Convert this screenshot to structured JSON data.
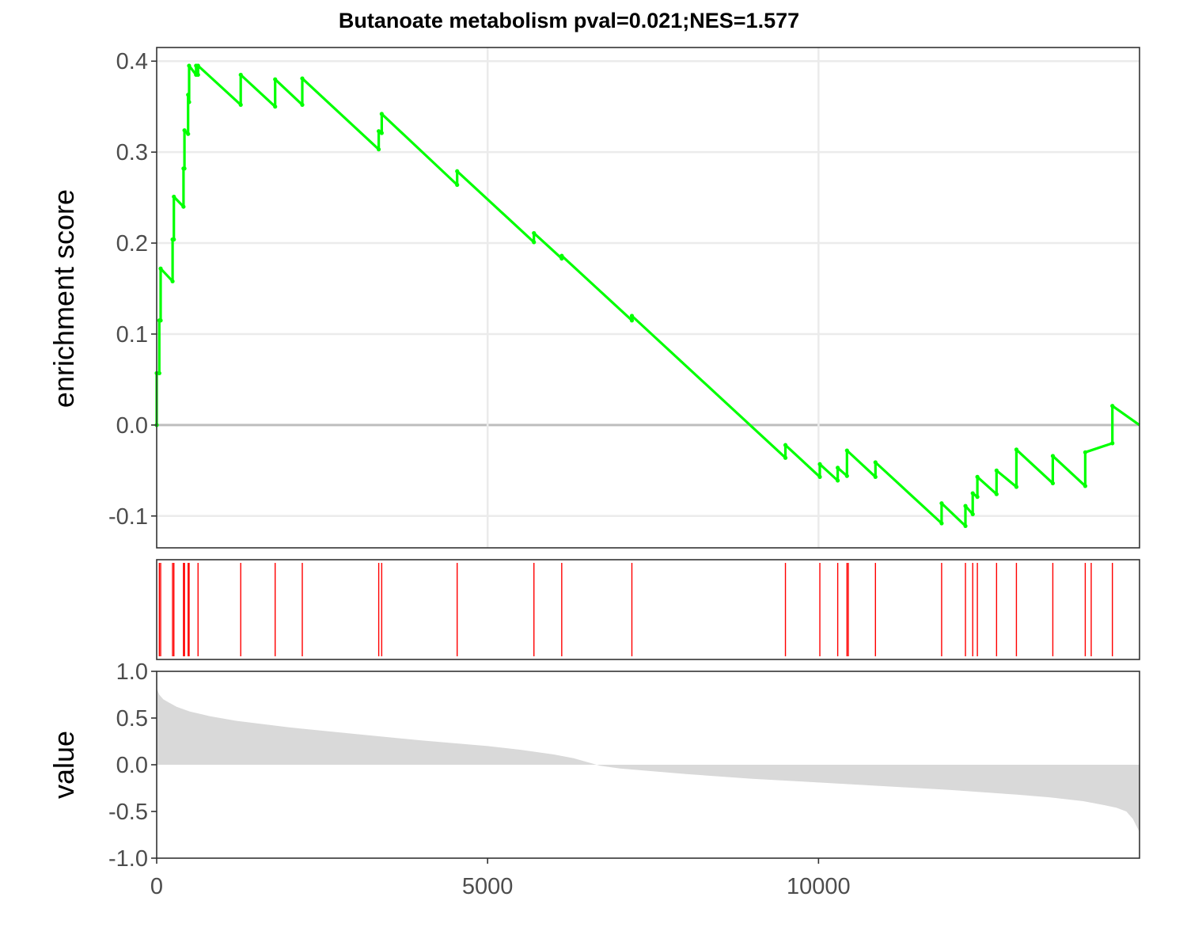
{
  "colors": {
    "es_line": "#00ff00",
    "hit": "#ff0000",
    "ranked": "#d9d9d9",
    "grid": "#ebebeb",
    "zero_line": "#bebebe",
    "panel_border": "#333333",
    "text": "#4d4d4d"
  },
  "chart_data": [
    {
      "type": "line",
      "panel": "running enrichment score",
      "title": "Butanoate metabolism pval=0.021;NES=1.577",
      "ylabel": "enrichment score",
      "xlabel": "",
      "xlim": [
        0,
        14850
      ],
      "ylim": [
        -0.135,
        0.415
      ],
      "x_ticks": [
        0,
        5000,
        10000
      ],
      "y_ticks": [
        -0.1,
        0.0,
        0.1,
        0.2,
        0.3,
        0.4
      ],
      "y_tick_labels": [
        "-0.1",
        "0.0",
        "0.1",
        "0.2",
        "0.3",
        "0.4"
      ],
      "grid": true,
      "x": [
        0,
        0,
        40,
        40,
        60,
        60,
        240,
        240,
        260,
        260,
        405,
        405,
        420,
        420,
        475,
        475,
        490,
        490,
        595,
        595,
        625,
        625,
        1270,
        1270,
        1790,
        1790,
        2200,
        2200,
        3355,
        3355,
        3400,
        3400,
        4540,
        4540,
        5700,
        5700,
        6120,
        6120,
        7180,
        7180,
        9500,
        9500,
        10020,
        10020,
        10290,
        10290,
        10430,
        10430,
        10860,
        10860,
        11860,
        11860,
        12220,
        12220,
        12330,
        12330,
        12400,
        12400,
        12690,
        12690,
        12990,
        12990,
        13540,
        13540,
        14030,
        14030,
        14440,
        14440,
        14850
      ],
      "y": [
        0,
        0.057,
        0.057,
        0.115,
        0.115,
        0.172,
        0.158,
        0.204,
        0.204,
        0.251,
        0.24,
        0.282,
        0.282,
        0.324,
        0.32,
        0.363,
        0.355,
        0.395,
        0.385,
        0.395,
        0.385,
        0.395,
        0.352,
        0.385,
        0.35,
        0.38,
        0.352,
        0.381,
        0.303,
        0.323,
        0.321,
        0.342,
        0.264,
        0.279,
        0.201,
        0.211,
        0.183,
        0.186,
        0.115,
        0.12,
        -0.036,
        -0.022,
        -0.057,
        -0.043,
        -0.061,
        -0.047,
        -0.056,
        -0.028,
        -0.057,
        -0.041,
        -0.108,
        -0.086,
        -0.111,
        -0.089,
        -0.098,
        -0.075,
        -0.079,
        -0.057,
        -0.076,
        -0.05,
        -0.068,
        -0.027,
        -0.064,
        -0.034,
        -0.067,
        -0.03,
        -0.02,
        0.021,
        0
      ]
    },
    {
      "type": "rug",
      "panel": "gene set hits",
      "xlim": [
        0,
        14850
      ],
      "x": [
        40,
        60,
        240,
        260,
        405,
        420,
        475,
        490,
        625,
        1270,
        1790,
        2200,
        3355,
        3400,
        4540,
        5700,
        6120,
        7180,
        9500,
        10020,
        10290,
        10430,
        10450,
        10860,
        11860,
        12220,
        12330,
        12400,
        12690,
        12990,
        13540,
        14030,
        14120,
        14440
      ]
    },
    {
      "type": "area",
      "panel": "ranked list metric",
      "ylabel": "value",
      "xlabel": "",
      "xlim": [
        0,
        14850
      ],
      "ylim": [
        -1.0,
        1.0
      ],
      "x_ticks": [
        0,
        5000,
        10000
      ],
      "x_tick_labels": [
        "0",
        "5000",
        "10000"
      ],
      "y_ticks": [
        -1.0,
        -0.5,
        0.0,
        0.5,
        1.0
      ],
      "y_tick_labels": [
        "-1.0",
        "-0.5",
        "0.0",
        "0.5",
        "1.0"
      ],
      "x": [
        0,
        40,
        100,
        200,
        300,
        500,
        800,
        1200,
        2000,
        3000,
        4000,
        5000,
        5500,
        6000,
        6300,
        6500,
        6700,
        7000,
        8000,
        9000,
        10000,
        11000,
        12000,
        13000,
        13500,
        14000,
        14300,
        14500,
        14650,
        14750,
        14850
      ],
      "y": [
        0.82,
        0.75,
        0.7,
        0.66,
        0.62,
        0.57,
        0.52,
        0.47,
        0.4,
        0.33,
        0.26,
        0.2,
        0.16,
        0.11,
        0.07,
        0.03,
        -0.01,
        -0.04,
        -0.1,
        -0.15,
        -0.19,
        -0.23,
        -0.27,
        -0.32,
        -0.35,
        -0.39,
        -0.43,
        -0.46,
        -0.5,
        -0.58,
        -0.72
      ]
    }
  ]
}
